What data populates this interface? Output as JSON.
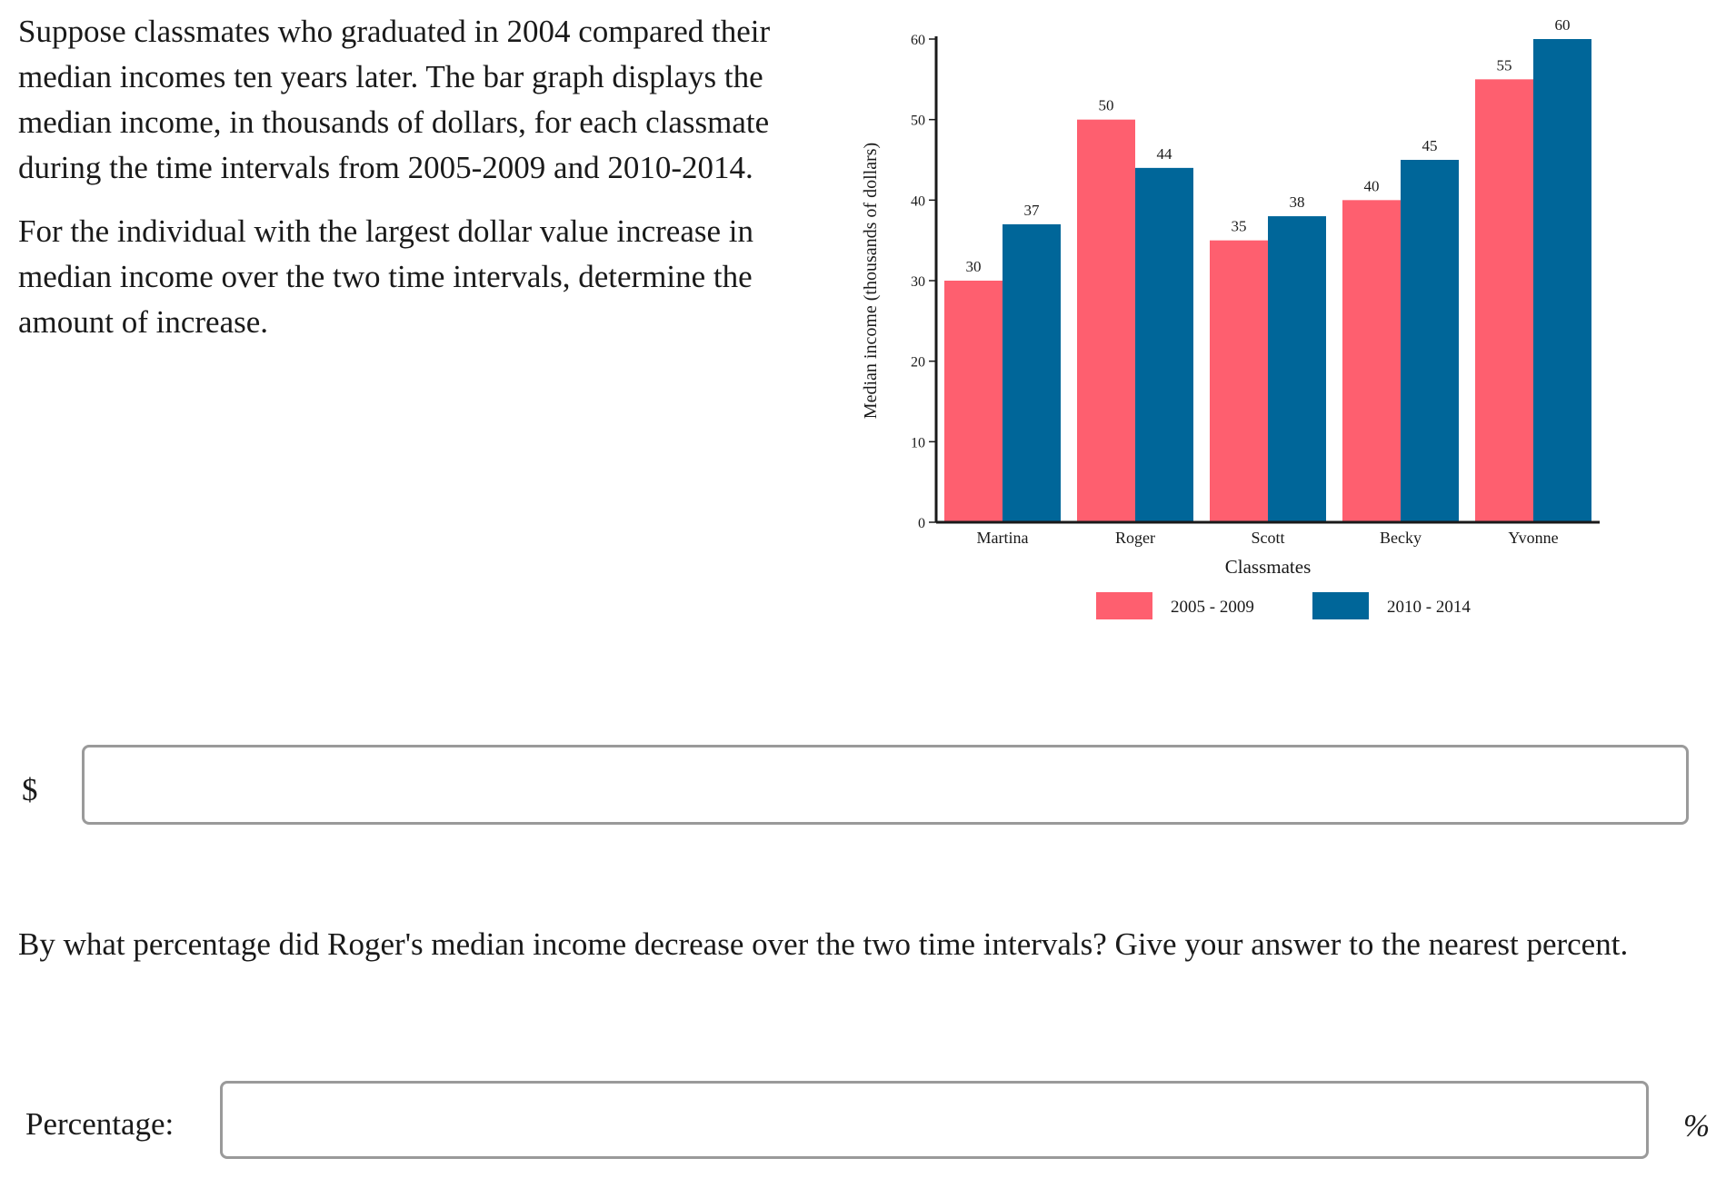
{
  "question": {
    "paragraph_1": "Suppose classmates who graduated in 2004 compared their median incomes ten years later. The bar graph displays the median income, in thousands of dollars, for each classmate during the time intervals from 2005-2009 and 2010-2014.",
    "paragraph_2": "For the individual with the largest dollar value increase in median income over the two time intervals, determine the amount of increase."
  },
  "answer_1": {
    "prefix": "$",
    "value": "",
    "placeholder": ""
  },
  "question_2": {
    "text": "By what percentage did Roger's median income decrease over the two time intervals? Give your answer to the nearest percent."
  },
  "answer_2": {
    "label": "Percentage:",
    "value": "",
    "placeholder": "",
    "suffix": "%"
  },
  "chart_data": {
    "type": "bar",
    "title": "",
    "xlabel": "Classmates",
    "ylabel": "Median income (thousands of dollars)",
    "ylim": [
      0,
      60
    ],
    "yticks": [
      0,
      10,
      20,
      30,
      40,
      50,
      60
    ],
    "categories": [
      "Martina",
      "Roger",
      "Scott",
      "Becky",
      "Yvonne"
    ],
    "series": [
      {
        "name": "2005 - 2009",
        "color": "#fe5f6f",
        "values": [
          30,
          50,
          35,
          40,
          55
        ]
      },
      {
        "name": "2010 - 2014",
        "color": "#006699",
        "values": [
          37,
          44,
          38,
          45,
          60
        ]
      }
    ],
    "legend_position": "bottom",
    "grid": false
  }
}
